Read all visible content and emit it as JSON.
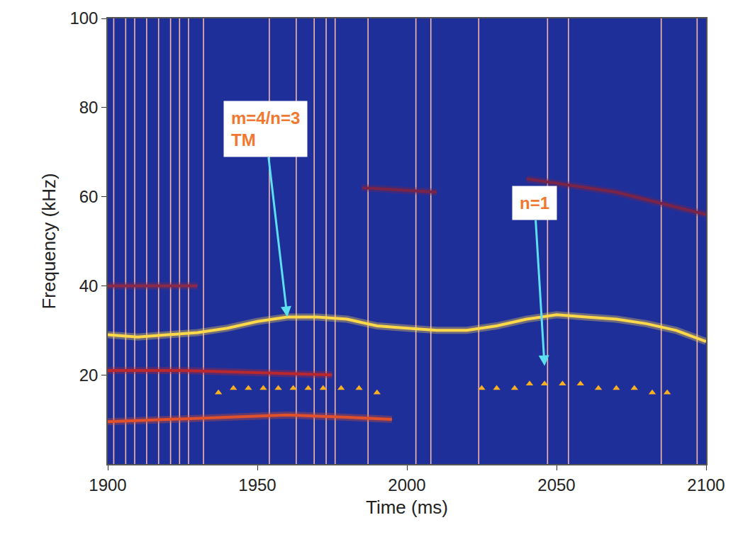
{
  "chart_data": {
    "type": "line",
    "x_label": "Time (ms)",
    "y_label": "Frequency (kHz)",
    "xlim": [
      1900,
      2100
    ],
    "xticks": [
      1900,
      1950,
      2000,
      2050,
      2100
    ],
    "ylim": [
      0,
      100
    ],
    "yticks": [
      20,
      40,
      60,
      80,
      100
    ],
    "grid": false,
    "series": [
      {
        "type": "vline",
        "color": "#f3b8a8",
        "x": [
          1902,
          1906,
          1909,
          1913,
          1917,
          1921,
          1924,
          1927,
          1932,
          1954,
          1963,
          1969,
          1973,
          1976,
          1987,
          2003,
          2008,
          2024,
          2047,
          2054,
          2085,
          2097
        ]
      },
      {
        "type": "line",
        "color": "#e0502a",
        "line_style": "solid",
        "x": [
          1900,
          1920,
          1940,
          1960,
          1980,
          1995
        ],
        "values": [
          9.5,
          10,
          10.5,
          11,
          10.5,
          10
        ]
      },
      {
        "type": "line",
        "color": "#b8282e",
        "line_style": "solid",
        "x": [
          1900,
          1925,
          1950,
          1975
        ],
        "values": [
          21,
          21,
          20.5,
          20
        ]
      },
      {
        "type": "line",
        "color": "#8a2a48",
        "line_style": "solid",
        "x": [
          1900,
          1930
        ],
        "values": [
          40,
          40
        ]
      },
      {
        "type": "line",
        "color": "#7a2448",
        "line_style": "solid",
        "x": [
          1985,
          2010,
          2020,
          2040,
          2070,
          2100
        ],
        "values": [
          62,
          61,
          null,
          64,
          61,
          56
        ]
      },
      {
        "type": "line",
        "color": "#ffd84a",
        "line_style": "solid",
        "x": [
          1900,
          1910,
          1920,
          1930,
          1940,
          1950,
          1960,
          1970,
          1980,
          1990,
          2000,
          2010,
          2020,
          2030,
          2040,
          2050,
          2060,
          2070,
          2080,
          2090,
          2100
        ],
        "values": [
          29,
          28.5,
          29,
          29.5,
          30.5,
          32,
          33,
          33,
          32.5,
          31,
          30.5,
          30,
          30,
          31,
          32.5,
          33.5,
          33,
          32.5,
          31.5,
          30,
          27.5
        ]
      },
      {
        "type": "scatter",
        "color": "#ffb020",
        "marker": "triangle-up",
        "x": [
          1937,
          1942,
          1947,
          1952,
          1957,
          1962,
          1967,
          1972,
          1978,
          1984,
          1990,
          2025,
          2030,
          2036,
          2041,
          2046,
          2052,
          2058,
          2064,
          2070,
          2076,
          2082,
          2087
        ],
        "values": [
          16,
          17,
          17,
          17,
          17,
          17,
          17,
          17,
          17,
          17,
          16,
          17,
          17,
          17,
          18,
          18,
          18,
          18,
          17,
          17,
          17,
          16,
          16
        ]
      }
    ],
    "annotations": [
      {
        "text": "m=4/n=3\nTM",
        "x": 1960,
        "y": 33
      },
      {
        "text": "n=1",
        "x": 2046,
        "y": 22
      }
    ]
  }
}
